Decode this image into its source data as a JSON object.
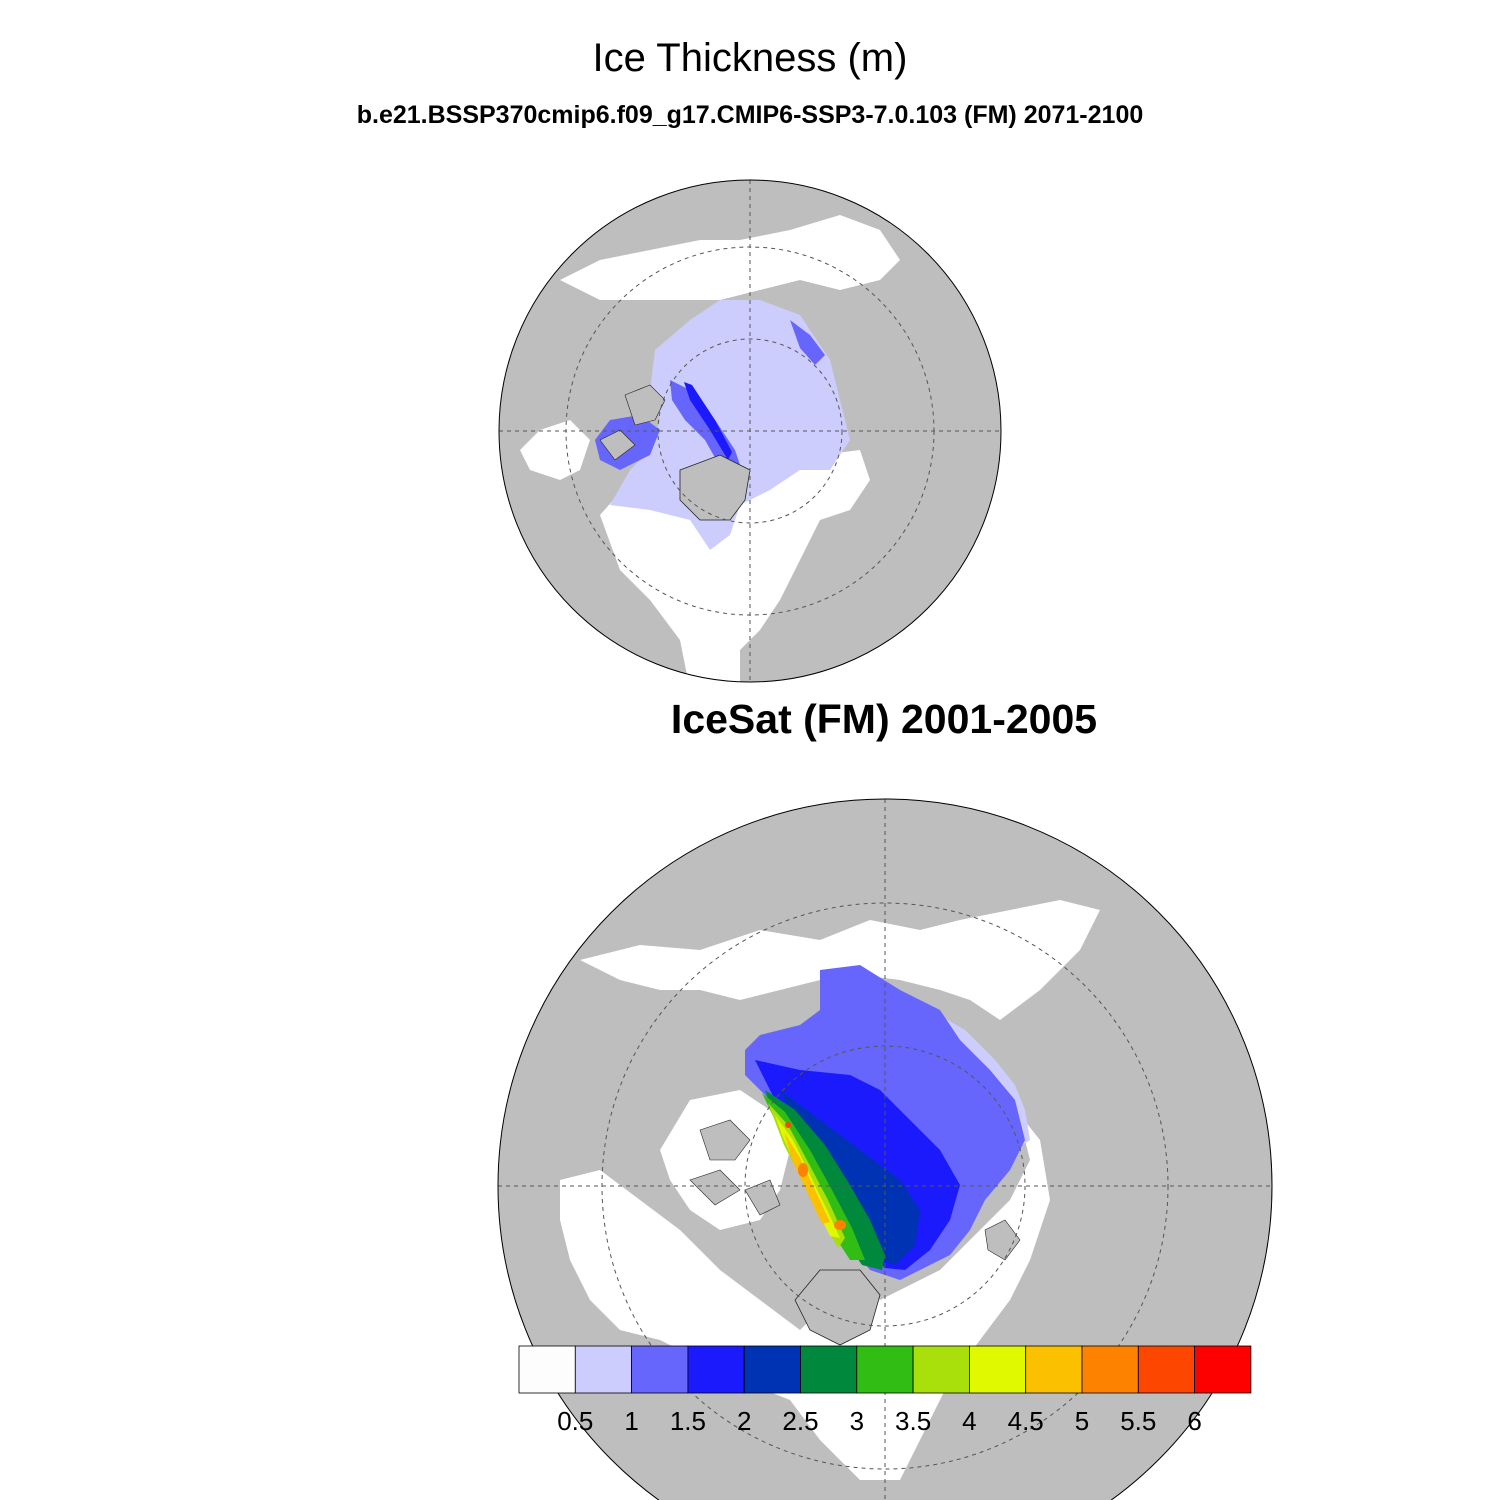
{
  "title": "Ice Thickness (m)",
  "subtitle": "b.e21.BSSP370cmip6.f09_g17.CMIP6-SSP3-7.0.103 (FM) 2071-2100",
  "obs_title": "IceSat (FM) 2001-2005",
  "colors": {
    "land": "#bebebe",
    "ocean": "#ffffff",
    "grid": "#555555"
  },
  "colorbar": {
    "colors": [
      "#fdfdfd",
      "#cdcdfd",
      "#6666fd",
      "#1a1afd",
      "#0032b4",
      "#00883c",
      "#32bd15",
      "#a9e00c",
      "#e0f900",
      "#fbc000",
      "#fd8200",
      "#fd4600",
      "#fd0000"
    ],
    "labels": [
      "0.5",
      "1",
      "1.5",
      "2",
      "2.5",
      "3",
      "3.5",
      "4",
      "4.5",
      "5",
      "5.5",
      "6"
    ]
  },
  "chart_data": [
    {
      "type": "heatmap",
      "title": "Ice Thickness (m)",
      "subtitle": "b.e21.BSSP370cmip6.f09_g17.CMIP6-SSP3-7.0.103 (FM) 2071-2100",
      "projection": "polar stereographic (north pole)",
      "levels": [
        0.5,
        1,
        1.5,
        2,
        2.5,
        3,
        3.5,
        4,
        4.5,
        5,
        5.5,
        6
      ],
      "dominant_range": [
        1,
        1.5
      ],
      "max_range": [
        1.5,
        2
      ]
    },
    {
      "type": "heatmap",
      "title": "IceSat (FM) 2001-2005",
      "projection": "polar stereographic (north pole)",
      "levels": [
        0.5,
        1,
        1.5,
        2,
        2.5,
        3,
        3.5,
        4,
        4.5,
        5,
        5.5,
        6
      ],
      "dominant_range": [
        1.5,
        2.5
      ],
      "max_range": [
        5.5,
        6
      ]
    }
  ]
}
